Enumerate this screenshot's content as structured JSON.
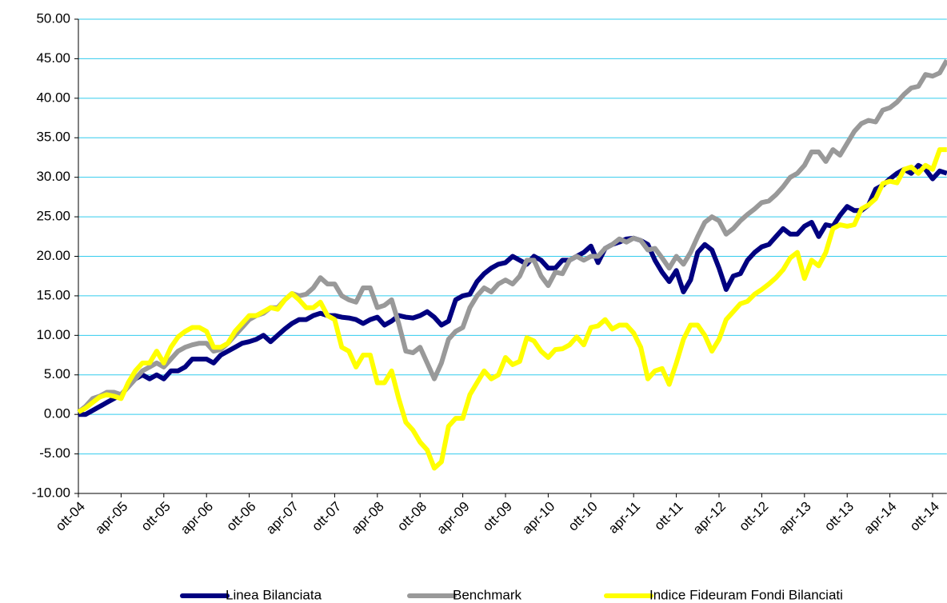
{
  "chart_data": {
    "type": "line",
    "categories": [
      "ott-04",
      null,
      null,
      null,
      null,
      null,
      "apr-05",
      null,
      null,
      null,
      null,
      null,
      "ott-05",
      null,
      null,
      null,
      null,
      null,
      "apr-06",
      null,
      null,
      null,
      null,
      null,
      "ott-06",
      null,
      null,
      null,
      null,
      null,
      "apr-07",
      null,
      null,
      null,
      null,
      null,
      "ott-07",
      null,
      null,
      null,
      null,
      null,
      "apr-08",
      null,
      null,
      null,
      null,
      null,
      "ott-08",
      null,
      null,
      null,
      null,
      null,
      "apr-09",
      null,
      null,
      null,
      null,
      null,
      "ott-09",
      null,
      null,
      null,
      null,
      null,
      "apr-10",
      null,
      null,
      null,
      null,
      null,
      "ott-10",
      null,
      null,
      null,
      null,
      null,
      "apr-11",
      null,
      null,
      null,
      null,
      null,
      "ott-11",
      null,
      null,
      null,
      null,
      null,
      "apr-12",
      null,
      null,
      null,
      null,
      null,
      "ott-12",
      null,
      null,
      null,
      null,
      null,
      "apr-13",
      null,
      null,
      null,
      null,
      null,
      "ott-13",
      null,
      null,
      null,
      null,
      null,
      "apr-14",
      null,
      null,
      null,
      null,
      null,
      "ott-14",
      null,
      null
    ],
    "series": [
      {
        "name": "Linea Bilanciata",
        "color": "#000080",
        "values": [
          0,
          0,
          0.5,
          1,
          1.5,
          2,
          2.5,
          3.5,
          4.5,
          5,
          4.5,
          5,
          4.5,
          5.5,
          5.5,
          6,
          7,
          7,
          7,
          6.5,
          7.5,
          8,
          8.5,
          9,
          9.2,
          9.5,
          10,
          9.2,
          10,
          10.8,
          11.5,
          12,
          12,
          12.5,
          12.8,
          12.5,
          12.5,
          12.3,
          12.2,
          12,
          11.5,
          12,
          12.3,
          11.3,
          11.8,
          12.5,
          12.3,
          12.2,
          12.5,
          13,
          12.3,
          11.3,
          11.8,
          14.5,
          15,
          15.2,
          16.8,
          17.8,
          18.5,
          19,
          19.2,
          20,
          19.5,
          19,
          20,
          19.5,
          18.5,
          18.5,
          19.5,
          19.5,
          20,
          20.5,
          21.3,
          19.2,
          21,
          21.5,
          21.8,
          22.2,
          22.3,
          22,
          21.5,
          19.5,
          18,
          16.8,
          18.2,
          15.5,
          17,
          20.5,
          21.5,
          20.8,
          18.5,
          15.8,
          17.5,
          17.8,
          19.5,
          20.5,
          21.2,
          21.5,
          22.5,
          23.5,
          22.8,
          22.8,
          23.8,
          24.3,
          22.5,
          24,
          23.8,
          25.2,
          26.3,
          25.8,
          25.8,
          26.5,
          28.5,
          29,
          29.8,
          30.5,
          31,
          30.5,
          31.5,
          31,
          29.8,
          30.8,
          30.5
        ]
      },
      {
        "name": "Benchmark",
        "color": "#999999",
        "values": [
          0.3,
          1,
          2,
          2.3,
          2.8,
          2.8,
          2.5,
          3.5,
          4.5,
          5.5,
          6,
          6.5,
          6,
          7,
          8,
          8.5,
          8.8,
          9,
          9,
          8,
          8.2,
          9,
          10,
          11,
          12,
          12.5,
          12.8,
          13.5,
          13.5,
          14.5,
          15.3,
          15,
          15.2,
          16,
          17.3,
          16.5,
          16.5,
          15,
          14.5,
          14.2,
          16,
          16,
          13.5,
          13.8,
          14.5,
          11.5,
          8,
          7.8,
          8.5,
          6.5,
          4.5,
          6.5,
          9.5,
          10.5,
          11,
          13.5,
          15,
          16,
          15.5,
          16.5,
          17,
          16.5,
          17.5,
          19.5,
          19.5,
          17.5,
          16.3,
          18,
          17.8,
          19.5,
          20,
          19.5,
          20,
          20,
          21,
          21.5,
          22.2,
          21.8,
          22.3,
          22,
          20.8,
          21,
          19.8,
          18.5,
          20,
          19,
          20.5,
          22.5,
          24.3,
          25,
          24.5,
          22.8,
          23.5,
          24.5,
          25.3,
          26,
          26.8,
          27,
          27.8,
          28.8,
          30,
          30.5,
          31.5,
          33.2,
          33.2,
          32,
          33.5,
          32.8,
          34.3,
          35.8,
          36.8,
          37.2,
          37,
          38.5,
          38.8,
          39.5,
          40.5,
          41.3,
          41.5,
          43,
          42.8,
          43.2,
          44.8
        ]
      },
      {
        "name": "Indice Fideuram Fondi Bilanciati",
        "color": "#ffff00",
        "values": [
          0.3,
          0.8,
          1.5,
          2.2,
          2.5,
          2.3,
          2,
          4,
          5.5,
          6.5,
          6.5,
          8,
          6.5,
          8.5,
          9.8,
          10.5,
          11,
          11,
          10.5,
          8.5,
          8.5,
          9,
          10.5,
          11.5,
          12.5,
          12.5,
          13,
          13.5,
          13.3,
          14.5,
          15.3,
          14.5,
          13.5,
          13.5,
          14.2,
          12.5,
          12,
          8.5,
          8,
          6,
          7.5,
          7.5,
          4,
          4,
          5.5,
          2,
          -1,
          -2,
          -3.5,
          -4.5,
          -6.8,
          -6,
          -1.5,
          -0.5,
          -0.5,
          2.5,
          4,
          5.5,
          4.5,
          5,
          7.2,
          6.3,
          6.7,
          9.7,
          9.3,
          8,
          7.2,
          8.2,
          8.3,
          8.8,
          9.8,
          8.8,
          11,
          11.2,
          12,
          10.8,
          11.3,
          11.3,
          10.3,
          8.5,
          4.5,
          5.5,
          5.8,
          3.8,
          6.5,
          9.5,
          11.3,
          11.3,
          10,
          8,
          9.5,
          12,
          13,
          14,
          14.3,
          15.2,
          15.8,
          16.5,
          17.3,
          18.3,
          19.8,
          20.5,
          17.2,
          19.5,
          18.8,
          20.5,
          23.5,
          24,
          23.8,
          24,
          26,
          26.5,
          27.3,
          29.2,
          29.5,
          29.3,
          31,
          31.3,
          30.5,
          31.5,
          31,
          33.5,
          33.5
        ]
      }
    ],
    "ylim": [
      -10,
      50
    ],
    "yticks": [
      {
        "value": -10,
        "label": "-10.00"
      },
      {
        "value": -5,
        "label": "-5.00"
      },
      {
        "value": 0,
        "label": "0.00"
      },
      {
        "value": 5,
        "label": "5.00"
      },
      {
        "value": 10,
        "label": "10.00"
      },
      {
        "value": 15,
        "label": "15.00"
      },
      {
        "value": 20,
        "label": "20.00"
      },
      {
        "value": 25,
        "label": "25.00"
      },
      {
        "value": 30,
        "label": "30.00"
      },
      {
        "value": 35,
        "label": "35.00"
      },
      {
        "value": 40,
        "label": "40.00"
      },
      {
        "value": 45,
        "label": "45.00"
      },
      {
        "value": 50,
        "label": "50.00"
      }
    ],
    "grid": true,
    "grid_color": "#33ccee",
    "legend": "bottom"
  }
}
